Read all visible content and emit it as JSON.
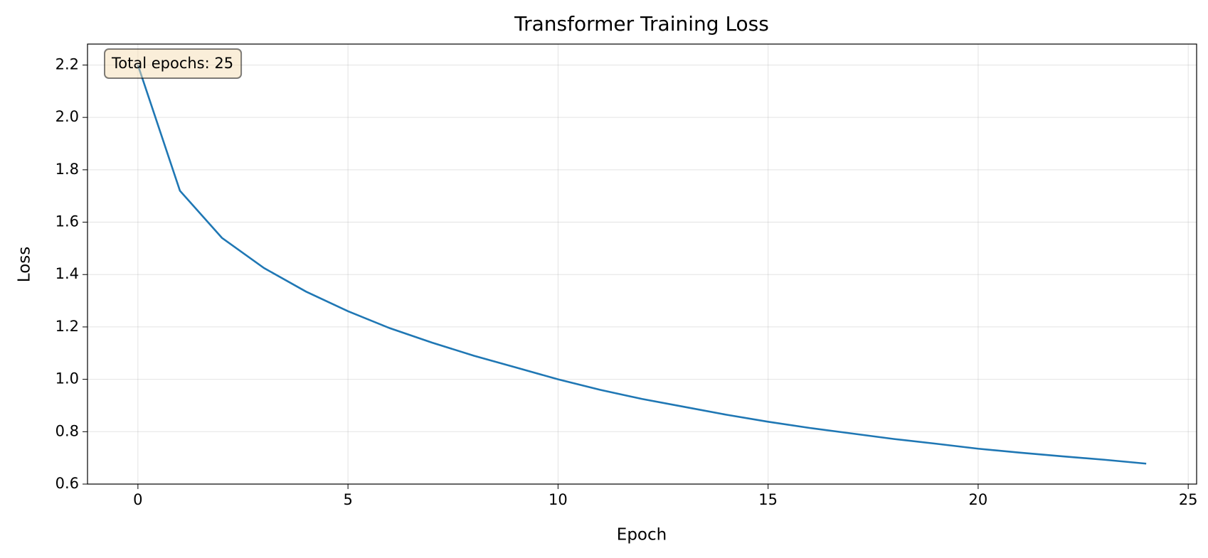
{
  "chart_data": {
    "type": "line",
    "title": "Transformer Training Loss",
    "x_label": "Epoch",
    "y_label": "Loss",
    "annotation": "Total epochs: 25",
    "x": [
      0,
      1,
      2,
      3,
      4,
      5,
      6,
      7,
      8,
      9,
      10,
      11,
      12,
      13,
      14,
      15,
      16,
      17,
      18,
      19,
      20,
      21,
      22,
      23,
      24
    ],
    "series": [
      {
        "name": "Loss",
        "color": "#1f77b4",
        "values": [
          2.2,
          1.72,
          1.54,
          1.425,
          1.335,
          1.26,
          1.195,
          1.14,
          1.09,
          1.045,
          1.0,
          0.96,
          0.925,
          0.895,
          0.865,
          0.838,
          0.814,
          0.793,
          0.772,
          0.754,
          0.735,
          0.72,
          0.706,
          0.693,
          0.678
        ]
      }
    ],
    "xlim": [
      -1.2,
      25.2
    ],
    "ylim": [
      0.6,
      2.28
    ],
    "xticks": [
      0,
      5,
      10,
      15,
      20,
      25
    ],
    "yticks": [
      0.6,
      0.8,
      {
        "value": 1.0,
        "label": "1.0"
      },
      1.2,
      1.4,
      1.6,
      1.8,
      {
        "value": 2.0,
        "label": "2.0"
      },
      2.2
    ],
    "grid": true
  }
}
